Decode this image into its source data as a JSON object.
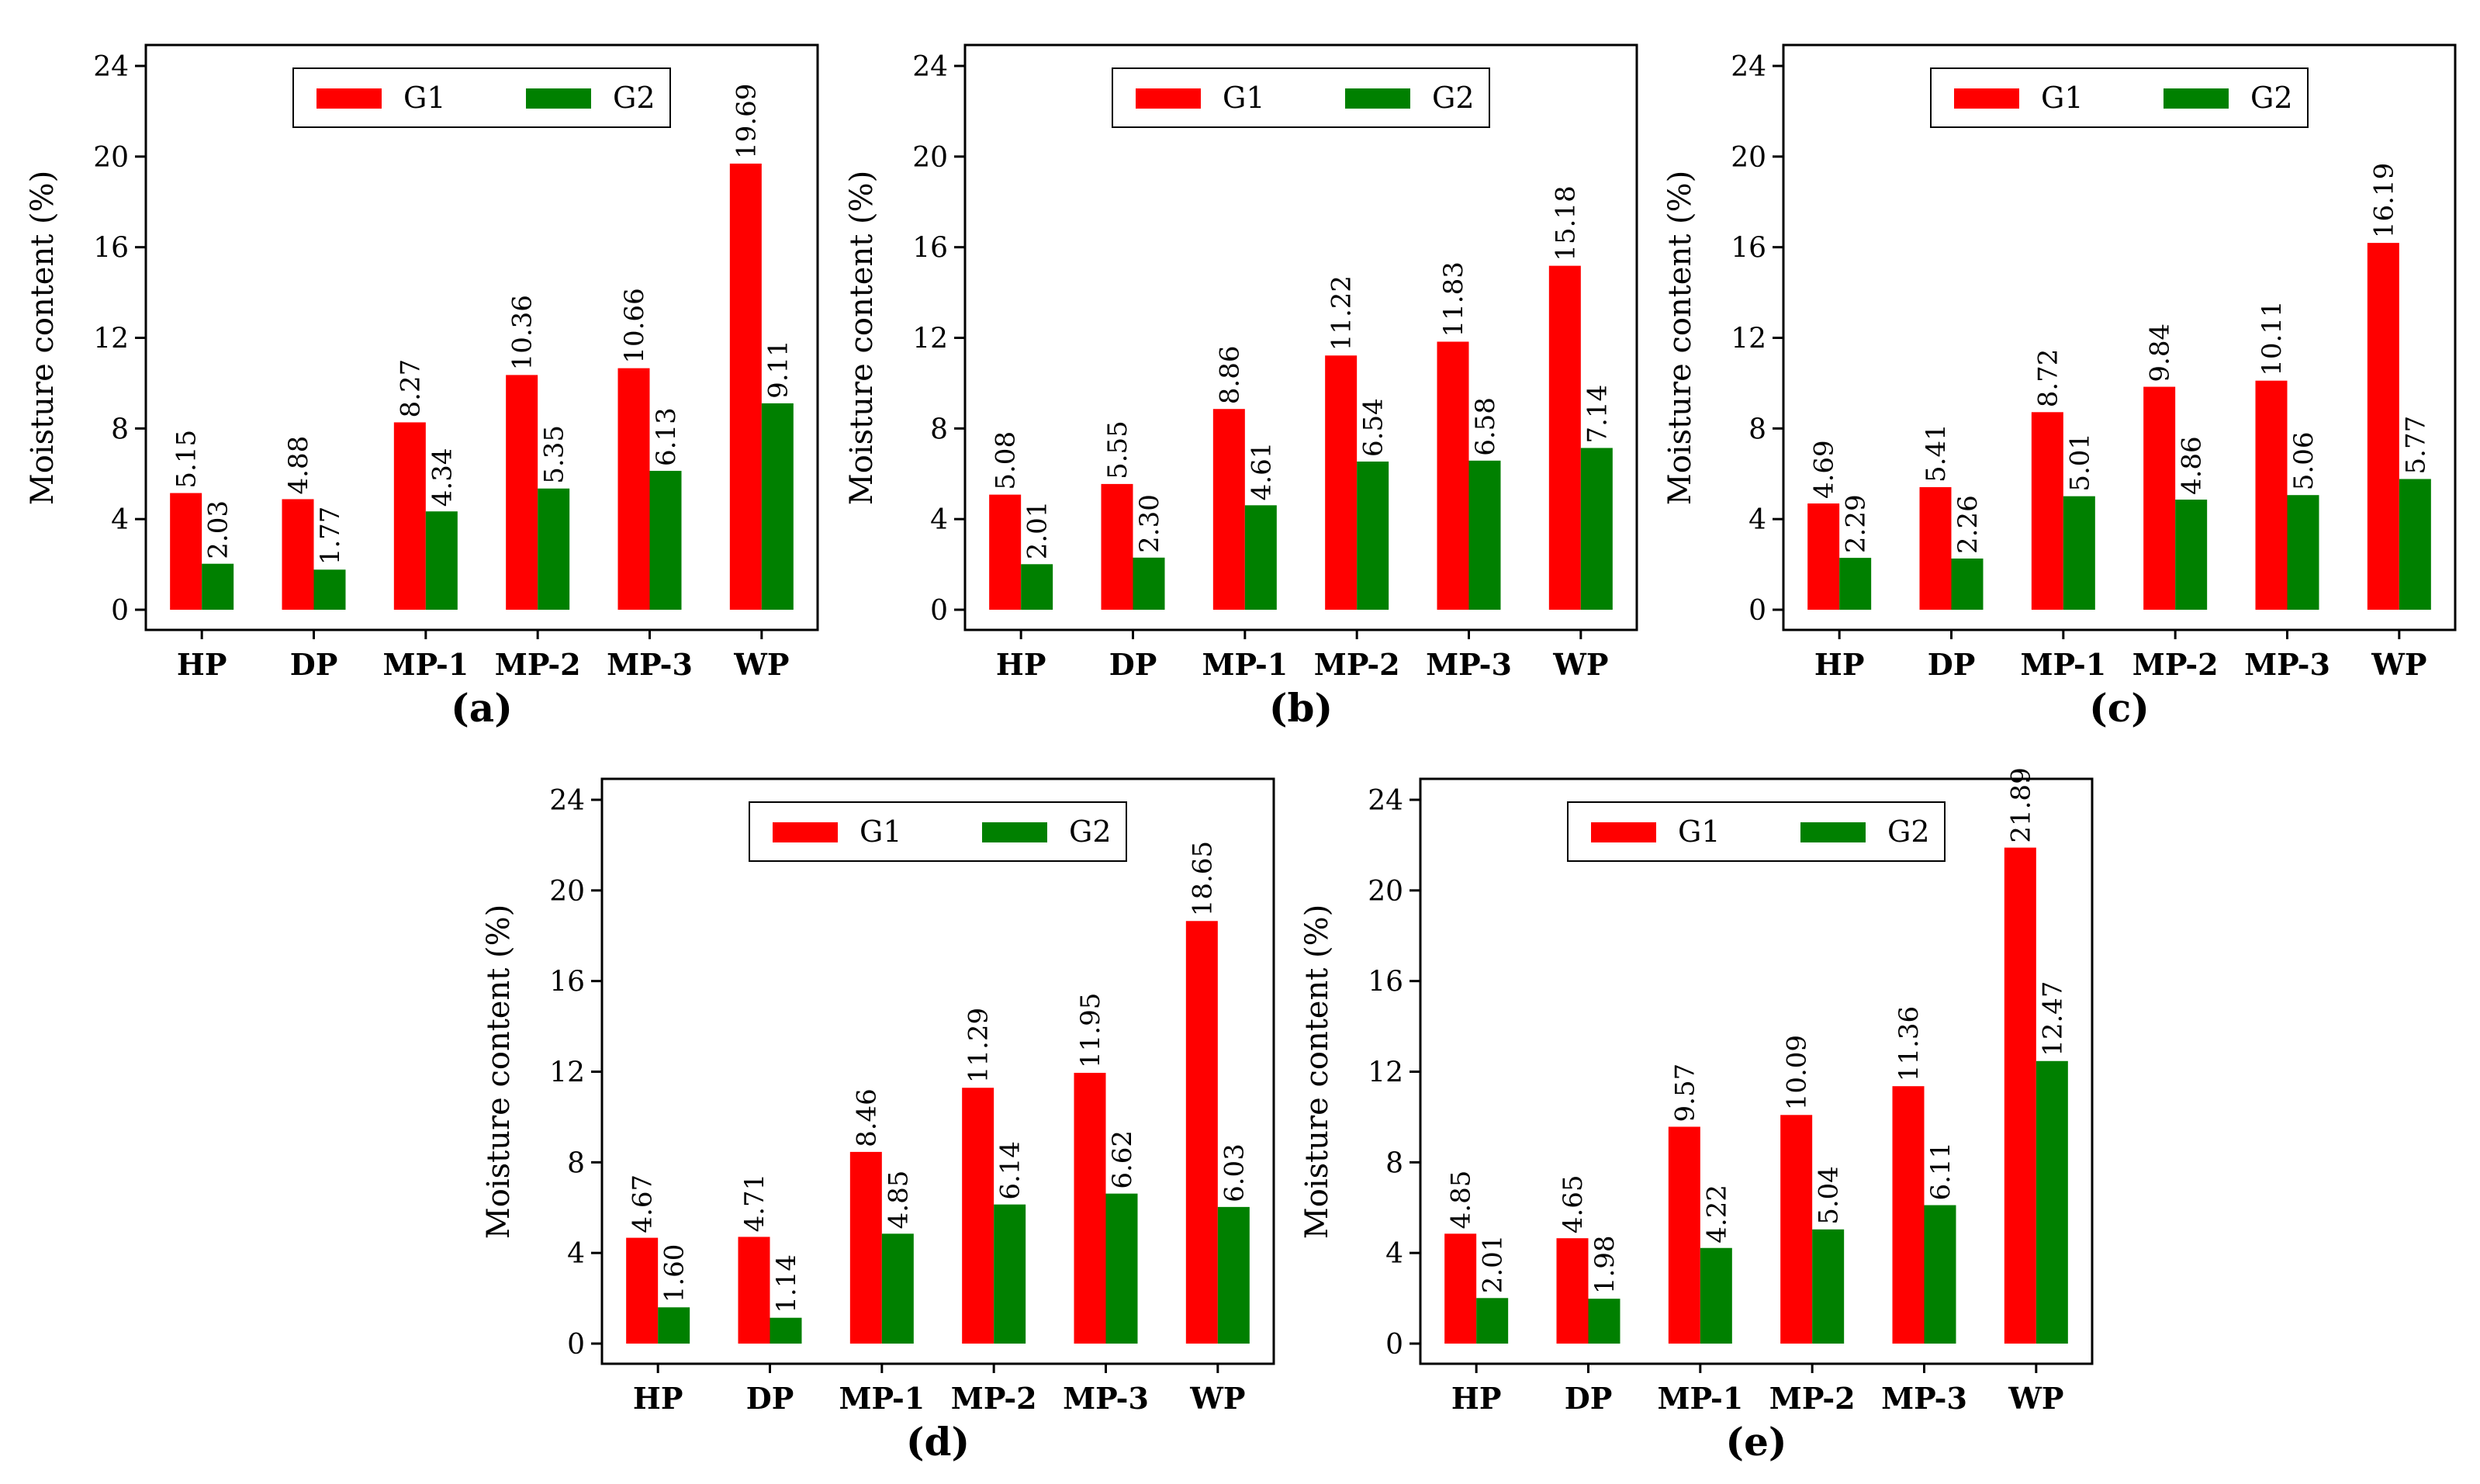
{
  "legend": {
    "series_names": [
      "G1",
      "G2"
    ]
  },
  "colors": {
    "G1": "#ff0000",
    "G2": "#008000"
  },
  "chart_data": [
    {
      "type": "bar",
      "panel_label": "(a)",
      "ylabel": "Moisture content (%)",
      "categories": [
        "HP",
        "DP",
        "MP-1",
        "MP-2",
        "MP-3",
        "WP"
      ],
      "yticks": [
        "0",
        "4",
        "8",
        "12",
        "16",
        "20",
        "24"
      ],
      "ylim": [
        0,
        24
      ],
      "legend_position": "top-center",
      "series": [
        {
          "name": "G1",
          "values": [
            5.15,
            4.88,
            8.27,
            10.36,
            10.66,
            19.69
          ],
          "labels": [
            "5.15",
            "4.88",
            "8.27",
            "10.36",
            "10.66",
            "19.69"
          ]
        },
        {
          "name": "G2",
          "values": [
            2.03,
            1.77,
            4.34,
            5.35,
            6.13,
            9.11
          ],
          "labels": [
            "2.03",
            "1.77",
            "4.34",
            "5.35",
            "6.13",
            "9.11"
          ]
        }
      ]
    },
    {
      "type": "bar",
      "panel_label": "(b)",
      "ylabel": "Moisture content (%)",
      "categories": [
        "HP",
        "DP",
        "MP-1",
        "MP-2",
        "MP-3",
        "WP"
      ],
      "yticks": [
        "0",
        "4",
        "8",
        "12",
        "16",
        "20",
        "24"
      ],
      "ylim": [
        0,
        24
      ],
      "legend_position": "top-center",
      "series": [
        {
          "name": "G1",
          "values": [
            5.08,
            5.55,
            8.86,
            11.22,
            11.83,
            15.18
          ],
          "labels": [
            "5.08",
            "5.55",
            "8.86",
            "11.22",
            "11.83",
            "15.18"
          ]
        },
        {
          "name": "G2",
          "values": [
            2.01,
            2.3,
            4.61,
            6.54,
            6.58,
            7.14
          ],
          "labels": [
            "2.01",
            "2.30",
            "4.61",
            "6.54",
            "6.58",
            "7.14"
          ]
        }
      ]
    },
    {
      "type": "bar",
      "panel_label": "(c)",
      "ylabel": "Moisture content (%)",
      "categories": [
        "HP",
        "DP",
        "MP-1",
        "MP-2",
        "MP-3",
        "WP"
      ],
      "yticks": [
        "0",
        "4",
        "8",
        "12",
        "16",
        "20",
        "24"
      ],
      "ylim": [
        0,
        24
      ],
      "legend_position": "top-center",
      "series": [
        {
          "name": "G1",
          "values": [
            4.69,
            5.41,
            8.72,
            9.84,
            10.11,
            16.19
          ],
          "labels": [
            "4.69",
            "5.41",
            "8.72",
            "9.84",
            "10.11",
            "16.19"
          ]
        },
        {
          "name": "G2",
          "values": [
            2.29,
            2.26,
            5.01,
            4.86,
            5.06,
            5.77
          ],
          "labels": [
            "2.29",
            "2.26",
            "5.01",
            "4.86",
            "5.06",
            "5.77"
          ]
        }
      ]
    },
    {
      "type": "bar",
      "panel_label": "(d)",
      "ylabel": "Moisture content (%)",
      "categories": [
        "HP",
        "DP",
        "MP-1",
        "MP-2",
        "MP-3",
        "WP"
      ],
      "yticks": [
        "0",
        "4",
        "8",
        "12",
        "16",
        "20",
        "24"
      ],
      "ylim": [
        0,
        24
      ],
      "legend_position": "top-center",
      "series": [
        {
          "name": "G1",
          "values": [
            4.67,
            4.71,
            8.46,
            11.29,
            11.95,
            18.65
          ],
          "labels": [
            "4.67",
            "4.71",
            "8.46",
            "11.29",
            "11.95",
            "18.65"
          ]
        },
        {
          "name": "G2",
          "values": [
            1.6,
            1.14,
            4.85,
            6.14,
            6.62,
            6.03
          ],
          "labels": [
            "1.60",
            "1.14",
            "4.85",
            "6.14",
            "6.62",
            "6.03"
          ]
        }
      ]
    },
    {
      "type": "bar",
      "panel_label": "(e)",
      "ylabel": "Moisture content (%)",
      "categories": [
        "HP",
        "DP",
        "MP-1",
        "MP-2",
        "MP-3",
        "WP"
      ],
      "yticks": [
        "0",
        "4",
        "8",
        "12",
        "16",
        "20",
        "24"
      ],
      "ylim": [
        0,
        24
      ],
      "legend_position": "top-center",
      "series": [
        {
          "name": "G1",
          "values": [
            4.85,
            4.65,
            9.57,
            10.09,
            11.36,
            21.89
          ],
          "labels": [
            "4.85",
            "4.65",
            "9.57",
            "10.09",
            "11.36",
            "21.89"
          ]
        },
        {
          "name": "G2",
          "values": [
            2.01,
            1.98,
            4.22,
            5.04,
            6.11,
            12.47
          ],
          "labels": [
            "2.01",
            "1.98",
            "4.22",
            "5.04",
            "6.11",
            "12.47"
          ]
        }
      ]
    }
  ]
}
